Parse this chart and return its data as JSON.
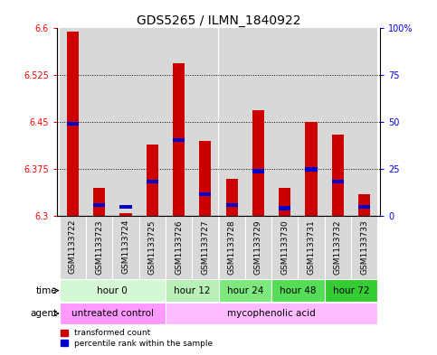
{
  "title": "GDS5265 / ILMN_1840922",
  "samples": [
    "GSM1133722",
    "GSM1133723",
    "GSM1133724",
    "GSM1133725",
    "GSM1133726",
    "GSM1133727",
    "GSM1133728",
    "GSM1133729",
    "GSM1133730",
    "GSM1133731",
    "GSM1133732",
    "GSM1133733"
  ],
  "red_values": [
    6.595,
    6.345,
    6.305,
    6.415,
    6.545,
    6.42,
    6.36,
    6.47,
    6.345,
    6.45,
    6.43,
    6.335
  ],
  "blue_values": [
    6.448,
    6.318,
    6.315,
    6.355,
    6.422,
    6.335,
    6.318,
    6.372,
    6.313,
    6.375,
    6.355,
    6.315
  ],
  "ymin": 6.3,
  "ymax": 6.6,
  "yticks": [
    6.3,
    6.375,
    6.45,
    6.525,
    6.6
  ],
  "ytick_labels": [
    "6.3",
    "6.375",
    "6.45",
    "6.525",
    "6.6"
  ],
  "right_ytick_labels": [
    "0",
    "25",
    "50",
    "75",
    "100%"
  ],
  "time_groups": [
    {
      "label": "hour 0",
      "start": 0,
      "end": 4,
      "color": "#d4f7d4"
    },
    {
      "label": "hour 12",
      "start": 4,
      "end": 6,
      "color": "#b8f0b8"
    },
    {
      "label": "hour 24",
      "start": 6,
      "end": 8,
      "color": "#7de87d"
    },
    {
      "label": "hour 48",
      "start": 8,
      "end": 10,
      "color": "#55dd55"
    },
    {
      "label": "hour 72",
      "start": 10,
      "end": 12,
      "color": "#33cc33"
    }
  ],
  "agent_groups": [
    {
      "label": "untreated control",
      "start": 0,
      "end": 4,
      "color": "#ff99ff"
    },
    {
      "label": "mycophenolic acid",
      "start": 4,
      "end": 12,
      "color": "#ffbbff"
    }
  ],
  "col_bg_color": "#d8d8d8",
  "bar_width": 0.45,
  "red_color": "#cc0000",
  "blue_color": "#0000cc",
  "title_fontsize": 10,
  "tick_fontsize": 7,
  "row_fontsize": 7.5
}
